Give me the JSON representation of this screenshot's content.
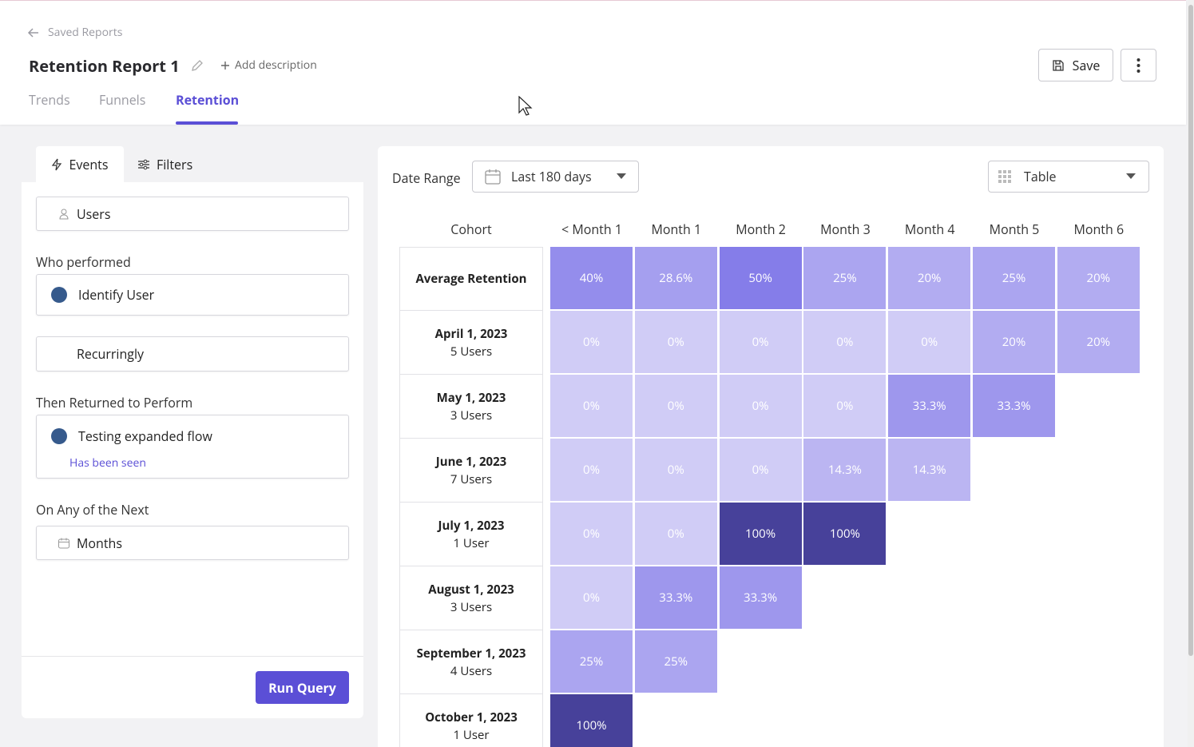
{
  "header": {
    "back": "Saved Reports",
    "title": "Retention Report 1",
    "add_description": "Add description",
    "save": "Save",
    "tabs": [
      "Trends",
      "Funnels",
      "Retention"
    ]
  },
  "sidebar": {
    "tabs": [
      "Events",
      "Filters"
    ],
    "users": "Users",
    "who_performed": {
      "label": "Who performed",
      "event": "Identify User",
      "frequency": "Recurringly"
    },
    "returned": {
      "label": "Then Returned to Perform",
      "event": "Testing expanded flow",
      "note": "Has been seen"
    },
    "next": {
      "label": "On Any of the Next",
      "unit": "Months"
    },
    "run": "Run Query"
  },
  "toolbar": {
    "date_label": "Date Range",
    "date_value": "Last 180 days",
    "view": "Table"
  },
  "table": {
    "columns": [
      "Cohort",
      "< Month 1",
      "Month 1",
      "Month 2",
      "Month 3",
      "Month 4",
      "Month 5",
      "Month 6"
    ],
    "rows": [
      {
        "cohort": "Average Retention",
        "cells": [
          "40%",
          "28.6%",
          "50%",
          "25%",
          "20%",
          "25%",
          "20%"
        ]
      },
      {
        "cohort": "April 1, 2023",
        "users": "5 Users",
        "cells": [
          "0%",
          "0%",
          "0%",
          "0%",
          "0%",
          "20%",
          "20%"
        ]
      },
      {
        "cohort": "May 1, 2023",
        "users": "3 Users",
        "cells": [
          "0%",
          "0%",
          "0%",
          "0%",
          "33.3%",
          "33.3%"
        ]
      },
      {
        "cohort": "June 1, 2023",
        "users": "7 Users",
        "cells": [
          "0%",
          "0%",
          "0%",
          "14.3%",
          "14.3%"
        ]
      },
      {
        "cohort": "July 1, 2023",
        "users": "1 User",
        "cells": [
          "0%",
          "0%",
          "100%",
          "100%"
        ]
      },
      {
        "cohort": "August 1, 2023",
        "users": "3 Users",
        "cells": [
          "0%",
          "33.3%",
          "33.3%"
        ]
      },
      {
        "cohort": "September 1, 2023",
        "users": "4 Users",
        "cells": [
          "25%",
          "25%"
        ]
      },
      {
        "cohort": "October 1, 2023",
        "users": "1 User",
        "cells": [
          "100%"
        ]
      }
    ]
  }
}
